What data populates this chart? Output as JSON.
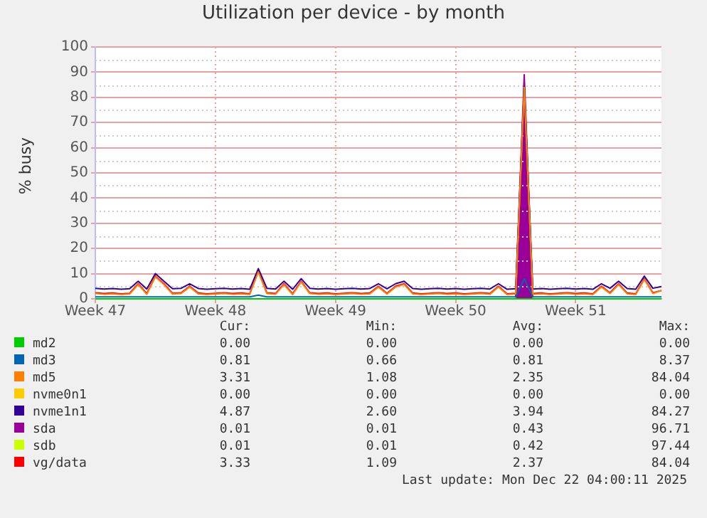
{
  "chart_data": {
    "type": "line",
    "title": "Utilization per device - by month",
    "ylabel": "% busy",
    "categories": [
      "Week 47",
      null,
      null,
      null,
      null,
      null,
      null,
      null,
      null,
      null,
      null,
      null,
      null,
      null,
      "Week 48",
      null,
      null,
      null,
      null,
      null,
      null,
      null,
      null,
      null,
      null,
      null,
      null,
      null,
      "Week 49",
      null,
      null,
      null,
      null,
      null,
      null,
      null,
      null,
      null,
      null,
      null,
      null,
      null,
      "Week 50",
      null,
      null,
      null,
      null,
      null,
      null,
      null,
      null,
      null,
      null,
      null,
      null,
      null,
      "Week 51",
      null,
      null,
      null,
      null,
      null,
      null,
      null,
      null,
      null,
      null
    ],
    "ylim": [
      0,
      100
    ],
    "yticks": [
      0,
      10,
      20,
      30,
      40,
      50,
      60,
      70,
      80,
      90,
      100
    ],
    "grid": true,
    "legend": "bottom",
    "series": [
      {
        "name": "md2",
        "color": "#00cc00",
        "values": [
          0,
          0,
          0,
          0,
          0,
          0,
          0,
          0,
          0,
          0,
          0,
          0,
          0,
          0,
          0,
          0,
          0,
          0,
          0,
          0,
          0,
          0,
          0,
          0,
          0,
          0,
          0,
          0,
          0,
          0,
          0,
          0,
          0,
          0,
          0,
          0,
          0,
          0,
          0,
          0,
          0,
          0,
          0,
          0,
          0,
          0,
          0,
          0,
          0,
          0,
          0,
          0,
          0,
          0,
          0,
          0,
          0,
          0,
          0,
          0,
          0,
          0,
          0,
          0,
          0,
          0,
          0
        ]
      },
      {
        "name": "md3",
        "color": "#0066b3",
        "values": [
          0.8,
          0.8,
          0.8,
          0.8,
          0.8,
          0.8,
          0.8,
          0.8,
          0.8,
          0.8,
          0.8,
          0.8,
          0.8,
          0.8,
          0.8,
          0.8,
          0.8,
          0.8,
          0.8,
          1.5,
          0.8,
          0.8,
          0.8,
          0.8,
          0.8,
          0.8,
          0.8,
          0.8,
          0.8,
          0.8,
          0.8,
          0.8,
          0.8,
          0.8,
          0.8,
          0.8,
          0.8,
          0.8,
          0.8,
          0.8,
          0.8,
          0.8,
          0.8,
          0.8,
          0.8,
          0.8,
          0.8,
          0.8,
          0.8,
          0.8,
          8,
          0.8,
          0.8,
          0.8,
          0.8,
          0.8,
          0.8,
          0.8,
          0.8,
          0.8,
          0.8,
          0.8,
          0.8,
          0.8,
          0.8,
          0.8,
          0.8
        ]
      },
      {
        "name": "md5",
        "color": "#ff8000",
        "values": [
          2.1,
          1.8,
          2.0,
          1.7,
          1.9,
          5.7,
          1.8,
          8.7,
          5.7,
          1.9,
          2.1,
          4.7,
          2.0,
          1.7,
          1.9,
          2.1,
          1.8,
          2.0,
          1.7,
          10.7,
          2.1,
          1.8,
          5.7,
          1.7,
          6.7,
          2.1,
          1.8,
          2.0,
          1.7,
          1.9,
          2.1,
          1.8,
          2.0,
          4.7,
          1.9,
          4.7,
          5.7,
          2.0,
          1.7,
          1.9,
          2.1,
          1.8,
          2.0,
          1.7,
          1.9,
          2.1,
          1.8,
          4.7,
          1.7,
          1.9,
          84,
          1.8,
          2.0,
          1.7,
          1.9,
          2.1,
          1.8,
          2.0,
          1.7,
          4.7,
          2.1,
          5.7,
          2.0,
          1.7,
          7.7,
          2.1,
          3.3
        ]
      },
      {
        "name": "nvme0n1",
        "color": "#ffcc00",
        "values": [
          null,
          null,
          null,
          null,
          null,
          null,
          null,
          null,
          null,
          null,
          null,
          null,
          null,
          null,
          null,
          null,
          null,
          null,
          null,
          null,
          null,
          null,
          null,
          null,
          null,
          null,
          null,
          null,
          null,
          null,
          null,
          null,
          null,
          null,
          null,
          null,
          null,
          null,
          null,
          null,
          null,
          null,
          null,
          null,
          null,
          null,
          null,
          null,
          null,
          null,
          null,
          null,
          null,
          null,
          null,
          null,
          null,
          null,
          null,
          null,
          null,
          null,
          null,
          null,
          null,
          null,
          null
        ]
      },
      {
        "name": "nvme1n1",
        "color": "#330099",
        "values": [
          4.2,
          3.9,
          4.1,
          3.8,
          4.0,
          7,
          3.9,
          10,
          7,
          4.0,
          4.2,
          6,
          4.1,
          3.8,
          4.0,
          4.2,
          3.9,
          4.1,
          3.8,
          12,
          4.2,
          3.9,
          7,
          3.8,
          8,
          4.2,
          3.9,
          4.1,
          3.8,
          4.0,
          4.2,
          3.9,
          4.1,
          6,
          4.0,
          6,
          7,
          4.1,
          3.8,
          4.0,
          4.2,
          3.9,
          4.1,
          3.8,
          4.0,
          4.2,
          3.9,
          6,
          3.8,
          4.0,
          84.3,
          3.9,
          4.1,
          3.8,
          4.0,
          4.2,
          3.9,
          4.1,
          3.8,
          6,
          4.2,
          7,
          4.1,
          3.8,
          9,
          4.2,
          4.9
        ]
      },
      {
        "name": "sda",
        "type": "area",
        "color": "#990099",
        "values": [
          null,
          null,
          null,
          null,
          null,
          null,
          null,
          null,
          null,
          null,
          null,
          null,
          null,
          null,
          null,
          null,
          null,
          null,
          null,
          null,
          null,
          null,
          null,
          null,
          null,
          null,
          null,
          null,
          null,
          null,
          null,
          null,
          null,
          null,
          null,
          null,
          null,
          null,
          null,
          null,
          null,
          null,
          null,
          null,
          null,
          null,
          null,
          null,
          null,
          0.5,
          89,
          0.5,
          null,
          null,
          null,
          null,
          null,
          null,
          null,
          null,
          null,
          null,
          null,
          null,
          null,
          null,
          null
        ]
      },
      {
        "name": "sdb",
        "type": "area",
        "color": "#ccff00",
        "values": [
          null,
          null,
          null,
          null,
          null,
          null,
          null,
          null,
          null,
          null,
          null,
          null,
          null,
          null,
          null,
          null,
          null,
          null,
          null,
          null,
          null,
          null,
          null,
          null,
          null,
          null,
          null,
          null,
          null,
          null,
          null,
          null,
          null,
          null,
          null,
          null,
          null,
          null,
          null,
          null,
          null,
          null,
          null,
          null,
          null,
          null,
          null,
          null,
          null,
          0.3,
          86,
          0.3,
          null,
          null,
          null,
          null,
          null,
          null,
          null,
          null,
          null,
          null,
          null,
          null,
          null,
          null,
          null
        ]
      },
      {
        "name": "vg/data",
        "color": "#ff0000",
        "values": [
          2.4,
          2.1,
          2.3,
          2.0,
          2.2,
          6,
          2.1,
          9,
          6,
          2.2,
          2.4,
          5,
          2.3,
          2.0,
          2.2,
          2.4,
          2.1,
          2.3,
          2.0,
          11,
          2.4,
          2.1,
          6,
          2.0,
          7,
          2.4,
          2.1,
          2.3,
          2.0,
          2.2,
          2.4,
          2.1,
          2.3,
          5,
          2.2,
          5,
          6,
          2.3,
          2.0,
          2.2,
          2.4,
          2.1,
          2.3,
          2.0,
          2.2,
          2.4,
          2.1,
          5,
          2.0,
          2.2,
          84,
          2.1,
          2.3,
          2.0,
          2.2,
          2.4,
          2.1,
          2.3,
          2.0,
          5,
          2.4,
          6,
          2.3,
          2.0,
          8,
          2.4,
          3.3
        ]
      }
    ],
    "annotations": [
      "Cur:",
      "Min:",
      "Avg:",
      "Max:",
      "0.00",
      "0.00",
      "0.00",
      "0.00",
      "0.81",
      "0.66",
      "0.81",
      "8.37",
      "3.31",
      "1.08",
      "2.35",
      "84.04",
      "0.00",
      "0.00",
      "0.00",
      "0.00",
      "4.87",
      "2.60",
      "3.94",
      "84.27",
      "0.01",
      "0.01",
      "0.43",
      "96.71",
      "0.01",
      "0.01",
      "0.42",
      "97.44",
      "3.33",
      "1.09",
      "2.37",
      "84.04",
      "Last update: Mon Dec 22 04:00:11 2025"
    ]
  }
}
